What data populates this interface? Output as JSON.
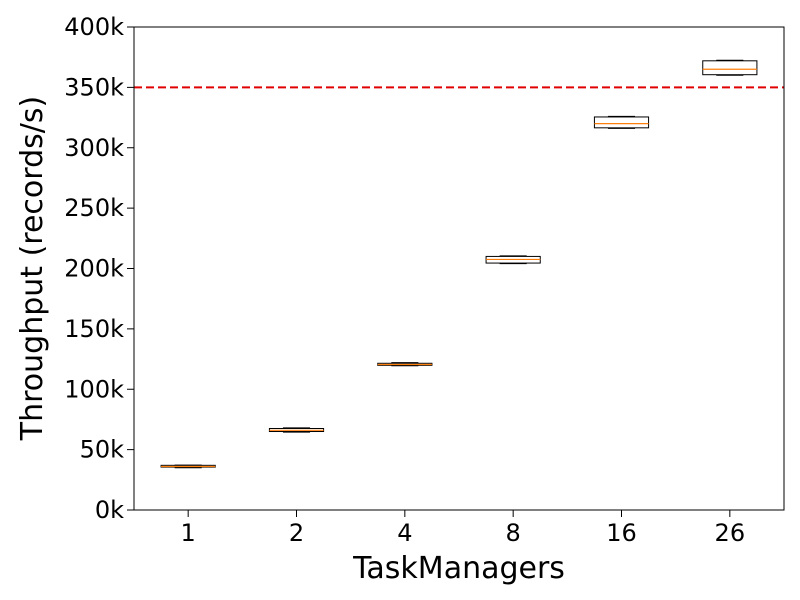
{
  "chart_data": {
    "type": "box",
    "title": "",
    "xlabel": "TaskManagers",
    "ylabel": "Throughput (records/s)",
    "categories": [
      "1",
      "2",
      "4",
      "8",
      "16",
      "26"
    ],
    "ylim": [
      0,
      400000
    ],
    "yticks": [
      0,
      50000,
      100000,
      150000,
      200000,
      250000,
      300000,
      350000,
      400000
    ],
    "ytick_labels": [
      "0k",
      "50k",
      "100k",
      "150k",
      "200k",
      "250k",
      "300k",
      "350k",
      "400k"
    ],
    "boxes": [
      {
        "category": "1",
        "min": 35000,
        "q1": 35500,
        "median": 36000,
        "q3": 37000,
        "max": 37200
      },
      {
        "category": "2",
        "min": 64500,
        "q1": 65000,
        "median": 66000,
        "q3": 67500,
        "max": 68000
      },
      {
        "category": "4",
        "min": 119500,
        "q1": 119800,
        "median": 120500,
        "q3": 121500,
        "max": 122000
      },
      {
        "category": "8",
        "min": 204000,
        "q1": 204500,
        "median": 207500,
        "q3": 210000,
        "max": 210500
      },
      {
        "category": "16",
        "min": 316000,
        "q1": 316500,
        "median": 320000,
        "q3": 325500,
        "max": 326000
      },
      {
        "category": "26",
        "min": 360000,
        "q1": 360500,
        "median": 365000,
        "q3": 372000,
        "max": 372500
      }
    ],
    "reference_line": {
      "value": 350000,
      "color": "#e00000",
      "style": "dashed"
    },
    "colors": {
      "box": "#000000",
      "median": "#ff7f0e"
    },
    "grid": false,
    "legend": "none"
  }
}
